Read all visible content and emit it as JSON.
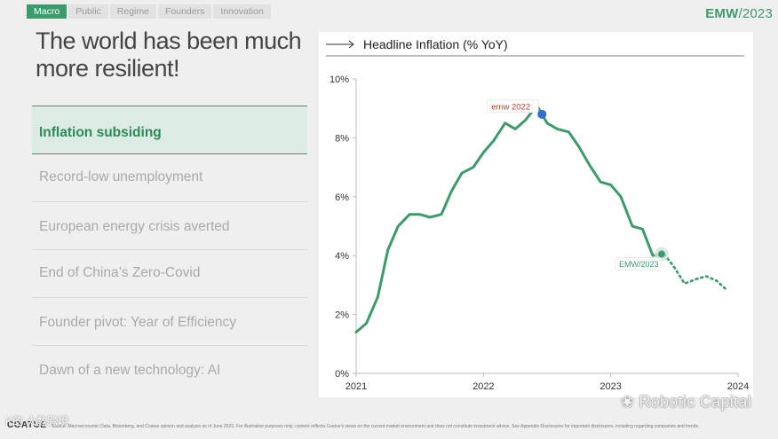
{
  "nav": {
    "tabs": [
      "Macro",
      "Public",
      "Regime",
      "Founders",
      "Innovation"
    ],
    "active_tab": 0
  },
  "brand": {
    "name": "EMW",
    "year": "/2023"
  },
  "headline": "The world has been much more resilient!",
  "topics": [
    "Inflation subsiding",
    "Record-low unemployment",
    "European energy crisis averted",
    "End of China’s Zero-Covid",
    "Founder pivot: Year of Efficiency",
    "Dawn of a new technology: AI"
  ],
  "active_topic": 0,
  "footer": {
    "logo": "COATUE",
    "source": "Source: Macroeconomic Data, Bloomberg, and Coatue opinion and analysis as of June 2023. For illustrative purposes only; content reflects Coatue’s views on the current market environment and does not constitute investment advice. See Appendix-Disclosures for important disclosures, including regarding companies and trends."
  },
  "watermarks": {
    "right": "Robotic Capital",
    "left": "K的 大数跨境"
  },
  "colors": {
    "accent": "#3c9b6a",
    "peak_marker": "#2f6fd6"
  },
  "chart_data": {
    "type": "line",
    "title": "Headline Inflation (% YoY)",
    "xlabel": "",
    "ylabel": "",
    "x_ticks": [
      "2021",
      "2022",
      "2023",
      "2024"
    ],
    "y_ticks": [
      "0%",
      "2%",
      "4%",
      "6%",
      "8%",
      "10%"
    ],
    "xlim": [
      2021,
      2024
    ],
    "ylim": [
      0,
      10
    ],
    "grid": false,
    "series": [
      {
        "style": "solid",
        "x": [
          2021.0,
          2021.08,
          2021.17,
          2021.25,
          2021.33,
          2021.42,
          2021.5,
          2021.58,
          2021.67,
          2021.75,
          2021.83,
          2021.92,
          2022.0,
          2022.08,
          2022.17,
          2022.25,
          2022.33,
          2022.42,
          2022.5,
          2022.58,
          2022.67,
          2022.75,
          2022.83,
          2022.92,
          2023.0,
          2023.08,
          2023.17,
          2023.25,
          2023.33,
          2023.42
        ],
        "values": [
          1.4,
          1.7,
          2.6,
          4.2,
          5.0,
          5.4,
          5.4,
          5.3,
          5.4,
          6.2,
          6.8,
          7.0,
          7.5,
          7.9,
          8.5,
          8.3,
          8.6,
          9.1,
          8.5,
          8.3,
          8.2,
          7.7,
          7.1,
          6.5,
          6.4,
          6.0,
          5.0,
          4.9,
          4.0,
          4.05
        ]
      },
      {
        "style": "dotted",
        "x": [
          2023.42,
          2023.5,
          2023.58,
          2023.67,
          2023.75,
          2023.83,
          2023.92
        ],
        "values": [
          4.05,
          3.6,
          3.05,
          3.2,
          3.3,
          3.15,
          2.8
        ]
      }
    ],
    "annotations": [
      {
        "label": "emw 2022",
        "x": 2022.46,
        "y": 8.8,
        "marker": "peak"
      },
      {
        "label": "EMW/2023",
        "x": 2023.4,
        "y": 4.05,
        "marker": "current"
      }
    ]
  }
}
